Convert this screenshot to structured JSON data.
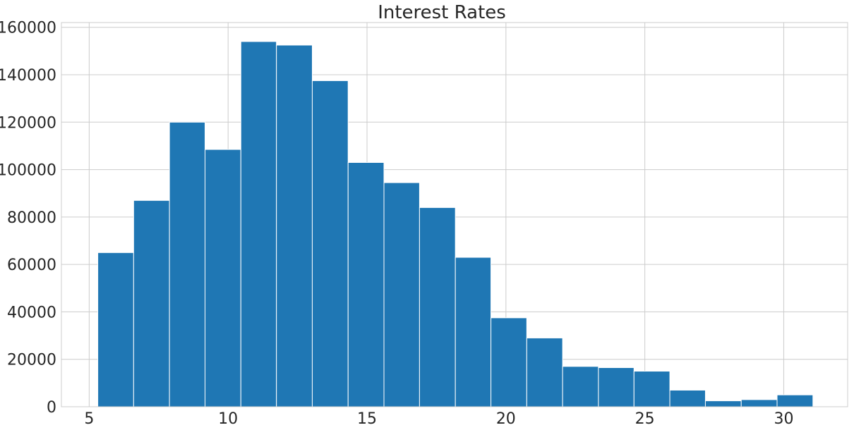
{
  "chart_data": {
    "type": "bar",
    "title": "Interest Rates",
    "xlabel": "",
    "ylabel": "",
    "bins": [
      {
        "x0": 5.31,
        "x1": 6.6,
        "value": 65000
      },
      {
        "x0": 6.6,
        "x1": 7.89,
        "value": 87000
      },
      {
        "x0": 7.89,
        "x1": 9.17,
        "value": 120000
      },
      {
        "x0": 9.17,
        "x1": 10.46,
        "value": 108500
      },
      {
        "x0": 10.46,
        "x1": 11.74,
        "value": 154000
      },
      {
        "x0": 11.74,
        "x1": 13.03,
        "value": 152500
      },
      {
        "x0": 13.03,
        "x1": 14.32,
        "value": 137500
      },
      {
        "x0": 14.32,
        "x1": 15.61,
        "value": 103000
      },
      {
        "x0": 15.61,
        "x1": 16.89,
        "value": 94500
      },
      {
        "x0": 16.89,
        "x1": 18.18,
        "value": 84000
      },
      {
        "x0": 18.18,
        "x1": 19.46,
        "value": 63000
      },
      {
        "x0": 19.46,
        "x1": 20.75,
        "value": 37500
      },
      {
        "x0": 20.75,
        "x1": 22.04,
        "value": 29000
      },
      {
        "x0": 22.04,
        "x1": 23.33,
        "value": 17000
      },
      {
        "x0": 23.33,
        "x1": 24.61,
        "value": 16500
      },
      {
        "x0": 24.61,
        "x1": 25.9,
        "value": 15000
      },
      {
        "x0": 25.9,
        "x1": 27.18,
        "value": 7000
      },
      {
        "x0": 27.18,
        "x1": 28.47,
        "value": 2500
      },
      {
        "x0": 28.47,
        "x1": 29.76,
        "value": 3000
      },
      {
        "x0": 29.76,
        "x1": 31.05,
        "value": 5000
      }
    ],
    "xlim": [
      4.0,
      32.3
    ],
    "ylim": [
      0,
      162000
    ],
    "xticks": [
      5,
      10,
      15,
      20,
      25,
      30
    ],
    "yticks": [
      0,
      20000,
      40000,
      60000,
      80000,
      100000,
      120000,
      140000,
      160000
    ],
    "xtick_labels": [
      "5",
      "10",
      "15",
      "20",
      "25",
      "30"
    ],
    "ytick_labels": [
      "0",
      "20000",
      "40000",
      "60000",
      "80000",
      "100000",
      "120000",
      "140000",
      "160000"
    ],
    "grid": true,
    "legend": "none",
    "colors": {
      "bar": "#1f77b4",
      "grid": "#cccccc",
      "text": "#262626",
      "background": "#ffffff"
    }
  }
}
